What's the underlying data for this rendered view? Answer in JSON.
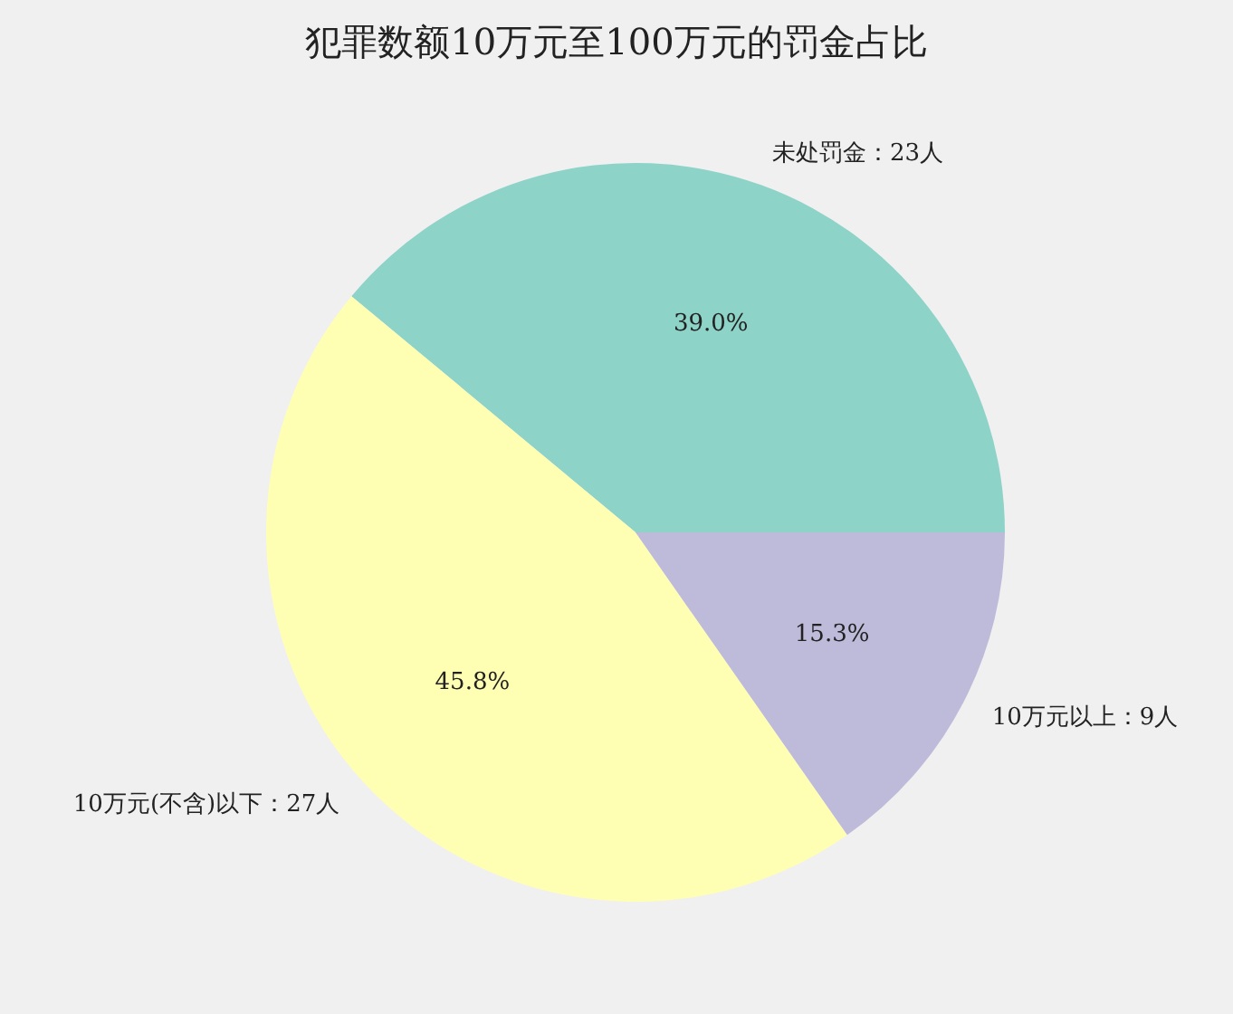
{
  "chart_data": {
    "type": "pie",
    "title": "犯罪数额10万元至100万元的罚金占比",
    "categories": [
      "未处罚金：23人",
      "10万元(不含)以下：27人",
      "10万元以上：9人"
    ],
    "values": [
      39.0,
      45.8,
      15.3
    ],
    "value_labels": [
      "39.0%",
      "45.8%",
      "15.3%"
    ],
    "colors": [
      "#8dd3c7",
      "#ffffb3",
      "#bebada"
    ],
    "legend": false
  }
}
